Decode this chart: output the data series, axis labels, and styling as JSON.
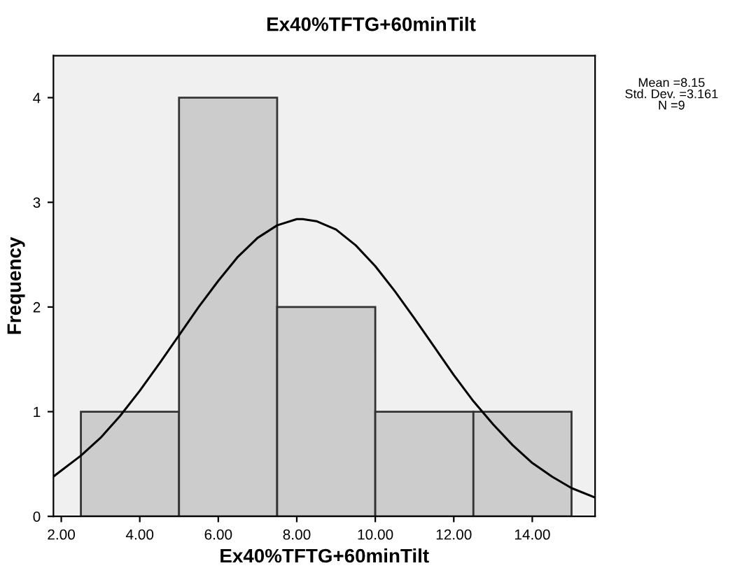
{
  "chart_data": {
    "type": "histogram",
    "title": "Ex40%TFTG+60minTilt",
    "xlabel": "Ex40%TFTG+60minTilt",
    "ylabel": "Frequency",
    "bins": [
      2.5,
      5,
      7.5,
      10,
      12.5,
      15
    ],
    "values": [
      1,
      4,
      2,
      1,
      1
    ],
    "color": "#cccccc",
    "series": [
      {
        "type": "line",
        "color": "#000000",
        "x": [
          1.8,
          2.5,
          3,
          3.5,
          4,
          4.5,
          5,
          5.5,
          6,
          6.5,
          7,
          7.5,
          8,
          8.15,
          8.5,
          9,
          9.5,
          10,
          10.5,
          11,
          11.5,
          12,
          12.5,
          13,
          13.5,
          14,
          14.5,
          15,
          15.6
        ],
        "values": [
          0.38,
          0.58,
          0.75,
          0.96,
          1.2,
          1.46,
          1.73,
          2.0,
          2.25,
          2.48,
          2.66,
          2.78,
          2.84,
          2.84,
          2.82,
          2.74,
          2.59,
          2.39,
          2.15,
          1.89,
          1.62,
          1.35,
          1.1,
          0.88,
          0.68,
          0.51,
          0.38,
          0.27,
          0.18
        ]
      }
    ],
    "xlim": [
      1.8,
      15.6
    ],
    "xticks": [
      {
        "value": 2,
        "label": "2.00"
      },
      {
        "value": 4,
        "label": "4.00"
      },
      {
        "value": 6,
        "label": "6.00"
      },
      {
        "value": 8,
        "label": "8.00"
      },
      {
        "value": 10,
        "label": "10.00"
      },
      {
        "value": 12,
        "label": "12.00"
      },
      {
        "value": 14,
        "label": "14.00"
      }
    ],
    "ylim": [
      0,
      4.4
    ],
    "yticks": [
      0,
      1,
      2,
      3,
      4
    ],
    "grid": false,
    "annotations": [
      "Mean =8.15\nStd. Dev. =3.161\nN =9"
    ]
  }
}
